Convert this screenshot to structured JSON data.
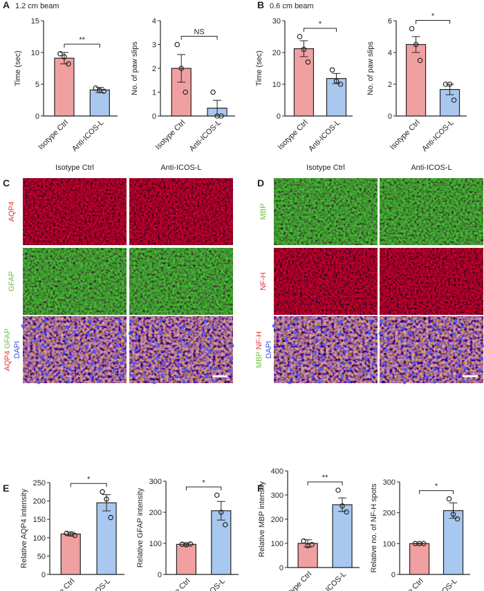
{
  "panel_labels": [
    "A",
    "B",
    "C",
    "D",
    "E",
    "F"
  ],
  "beam_labels": [
    "1.2 cm beam",
    "0.6 cm beam"
  ],
  "images": [
    {
      "columns": [
        "Isotype Ctrl",
        "Anti-ICOS-L"
      ],
      "rows": [
        {
          "labels": [
            "AQP4"
          ],
          "colors": [
            "#e03030"
          ],
          "tint": "red"
        },
        {
          "labels": [
            "GFAP"
          ],
          "colors": [
            "#6cc040"
          ],
          "tint": "green"
        },
        {
          "labels": [
            "AQP4",
            "GFAP",
            "DAPI"
          ],
          "colors": [
            "#e03030",
            "#6cc040",
            "#3050e0"
          ],
          "tint": "merge"
        }
      ]
    },
    {
      "columns": [
        "Isotype Ctrl",
        "Anti-ICOS-L"
      ],
      "rows": [
        {
          "labels": [
            "MBP"
          ],
          "colors": [
            "#6cc040"
          ],
          "tint": "green"
        },
        {
          "labels": [
            "NF-H"
          ],
          "colors": [
            "#e03030"
          ],
          "tint": "red"
        },
        {
          "labels": [
            "MBP",
            "NF-H",
            "DAPI"
          ],
          "colors": [
            "#6cc040",
            "#e03030",
            "#3050e0"
          ],
          "tint": "merge"
        }
      ]
    }
  ],
  "chart_data": [
    {
      "type": "bar",
      "ylabel": "Time (sec)",
      "categories": [
        "Isotype Ctrl",
        "Anti-ICOS-L"
      ],
      "colors": [
        "#f0a0a0",
        "#a8c8f0"
      ],
      "values": [
        9.1,
        4.1
      ],
      "errors": [
        0.9,
        0.4
      ],
      "points": [
        [
          9.8,
          9.3,
          8.2
        ],
        [
          4.4,
          4.0,
          3.9
        ]
      ],
      "ylim": [
        0,
        15
      ],
      "yticks": [
        0,
        5,
        10,
        15
      ],
      "significance": "**"
    },
    {
      "type": "bar",
      "ylabel": "No. of paw slips",
      "categories": [
        "Isotype Ctrl",
        "Anti-ICOS-L"
      ],
      "colors": [
        "#f0a0a0",
        "#a8c8f0"
      ],
      "values": [
        2,
        0.33
      ],
      "errors": [
        0.58,
        0.33
      ],
      "points": [
        [
          3,
          2,
          1
        ],
        [
          1,
          0,
          0
        ]
      ],
      "ylim": [
        0,
        4
      ],
      "yticks": [
        0,
        1,
        2,
        3,
        4
      ],
      "significance": "NS"
    },
    {
      "type": "bar",
      "ylabel": "Time (sec)",
      "categories": [
        "Isotype Ctrl",
        "Anti-ICOS-L"
      ],
      "colors": [
        "#f0a0a0",
        "#a8c8f0"
      ],
      "values": [
        21.2,
        11.8
      ],
      "errors": [
        2.5,
        1.6
      ],
      "points": [
        [
          25,
          21,
          17
        ],
        [
          14.5,
          11,
          10
        ]
      ],
      "ylim": [
        0,
        30
      ],
      "yticks": [
        0,
        10,
        20,
        30
      ],
      "significance": "*"
    },
    {
      "type": "bar",
      "ylabel": "No. of paw slips",
      "categories": [
        "Isotype Ctrl",
        "Anti-ICOS-L"
      ],
      "colors": [
        "#f0a0a0",
        "#a8c8f0"
      ],
      "values": [
        4.5,
        1.67
      ],
      "errors": [
        0.5,
        0.33
      ],
      "points": [
        [
          5.5,
          4.5,
          3.5
        ],
        [
          2,
          2,
          1
        ]
      ],
      "ylim": [
        0,
        6
      ],
      "yticks": [
        0,
        2,
        4,
        6
      ],
      "significance": "*"
    },
    {
      "type": "bar",
      "ylabel": "Relative AQP4 intensity",
      "categories": [
        "Isotype Ctrl",
        "Anti-ICOS-L"
      ],
      "colors": [
        "#f0a0a0",
        "#a8c8f0"
      ],
      "values": [
        110,
        195
      ],
      "errors": [
        5,
        22
      ],
      "points": [
        [
          112,
          110,
          106
        ],
        [
          225,
          205,
          155
        ]
      ],
      "ylim": [
        0,
        250
      ],
      "yticks": [
        0,
        50,
        100,
        150,
        200,
        250
      ],
      "significance": "*"
    },
    {
      "type": "bar",
      "ylabel": "Relative GFAP intensity",
      "categories": [
        "Isotype Ctrl",
        "Anti-ICOS-L"
      ],
      "colors": [
        "#f0a0a0",
        "#a8c8f0"
      ],
      "values": [
        97,
        205
      ],
      "errors": [
        5,
        30
      ],
      "points": [
        [
          97,
          95,
          98
        ],
        [
          255,
          200,
          160
        ]
      ],
      "ylim": [
        0,
        300
      ],
      "yticks": [
        0,
        100,
        200,
        300
      ],
      "significance": "*"
    },
    {
      "type": "bar",
      "ylabel": "Relative MBP intensity",
      "categories": [
        "Isotype Ctrl",
        "Anti-ICOS-L"
      ],
      "colors": [
        "#f0a0a0",
        "#a8c8f0"
      ],
      "values": [
        100,
        260
      ],
      "errors": [
        15,
        28
      ],
      "points": [
        [
          110,
          90,
          95
        ],
        [
          320,
          255,
          230
        ]
      ],
      "ylim": [
        0,
        400
      ],
      "yticks": [
        0,
        100,
        200,
        300,
        400
      ],
      "significance": "**"
    },
    {
      "type": "bar",
      "ylabel": "Relative no. of NF-H spots",
      "categories": [
        "Isotype Ctrl",
        "Anti-ICOS-L"
      ],
      "colors": [
        "#f0a0a0",
        "#a8c8f0"
      ],
      "values": [
        100,
        207
      ],
      "errors": [
        1,
        25
      ],
      "points": [
        [
          100,
          100,
          100
        ],
        [
          245,
          195,
          180
        ]
      ],
      "ylim": [
        0,
        300
      ],
      "yticks": [
        0,
        100,
        200,
        300
      ],
      "significance": "*"
    }
  ]
}
